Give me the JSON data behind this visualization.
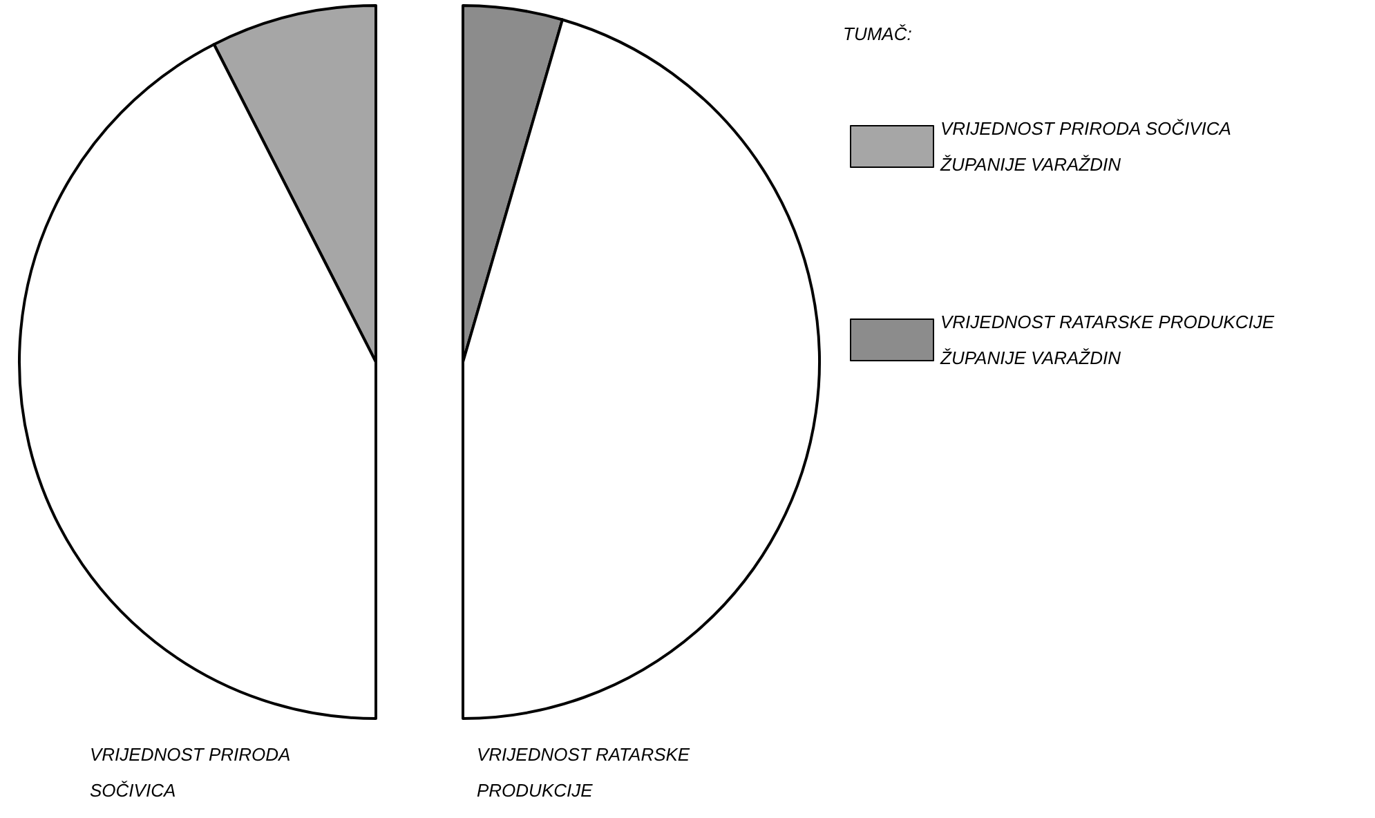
{
  "chart_data": [
    {
      "type": "pie",
      "title": "VRIJEDNOST PRIRODA SOČIVICA",
      "categories": [
        "VRIJEDNOST PRIRODA SOČIVICA ŽUPANIJE VARAŽDIN",
        null
      ],
      "values": [
        15,
        85
      ],
      "colors": [
        "#a6a6a6",
        "#ffffff"
      ],
      "legend": "right",
      "legend_title": "TUMAČ:"
    },
    {
      "type": "pie",
      "title": "VRIJEDNOST RATARSKE PRODUKCIJE",
      "categories": [
        "VRIJEDNOST RATARSKE PRODUKCIJE ŽUPANIJE VARAŽDIN",
        null
      ],
      "values": [
        9,
        91
      ],
      "colors": [
        "#8c8c8c",
        "#ffffff"
      ],
      "legend": "right"
    }
  ]
}
